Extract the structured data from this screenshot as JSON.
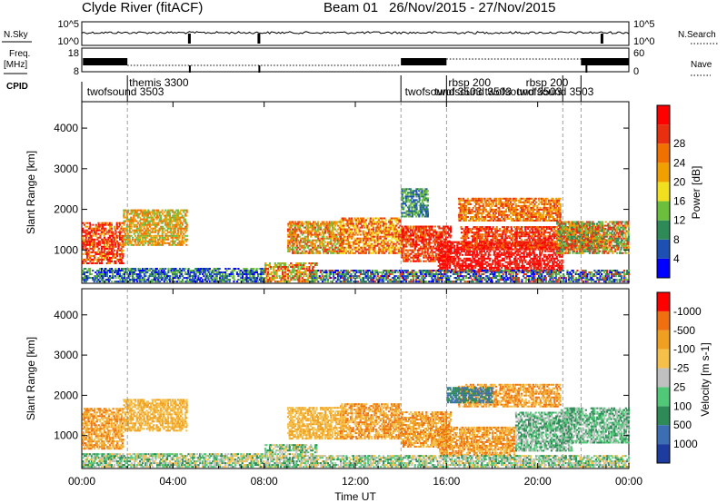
{
  "header": {
    "station": "Clyde River (fitACF)",
    "beam": "Beam 01",
    "dates": "26/Nov/2015 - 27/Nov/2015"
  },
  "strips": {
    "nsky_label": "N.Sky",
    "nsky_ticks": [
      "10^5",
      "10^0"
    ],
    "nsearch_label": "N.Search",
    "nsearch_ticks": [
      "10^5",
      "10^0"
    ],
    "freq_label": "Freq.",
    "freq_unit": "[MHz]",
    "freq_ticks": [
      "18",
      "8"
    ],
    "nave_label": "Nave",
    "nave_ticks": [
      "60",
      "0"
    ],
    "cpid_label": "CPID",
    "cpid_labels": [
      {
        "text": "themis 3300",
        "hour": 2.0,
        "row": 0
      },
      {
        "text": "twofsound 3503",
        "hour": 0.15,
        "row": 1
      },
      {
        "text": "rbsp 200",
        "hour": 16.0,
        "row": 0
      },
      {
        "text": "rbsp 200",
        "hour": 19.4,
        "row": 0
      },
      {
        "text": "twofsound 3503",
        "hour": 14.1,
        "row": 1
      },
      {
        "text": "twofsound 3503",
        "hour": 15.4,
        "row": 1
      },
      {
        "text": "twofsound 3503",
        "hour": 17.6,
        "row": 1
      },
      {
        "text": "twofsound 3503",
        "hour": 19.0,
        "row": 1
      }
    ],
    "cpid_change_hours": [
      2.0,
      14.0,
      16.0,
      21.1,
      21.9
    ]
  },
  "chart_data": [
    {
      "type": "heatmap",
      "name": "Power",
      "ylabel": "Slant Range [km]",
      "xlim_hours": [
        0,
        24
      ],
      "ylim_km": [
        180,
        4650
      ],
      "yticks": [
        1000,
        2000,
        3000,
        4000
      ],
      "colorbar": {
        "title": "Power [dB]",
        "ticks": [
          "4",
          "8",
          "12",
          "16",
          "20",
          "24",
          "28"
        ],
        "colors": [
          "#0000ff",
          "#1e50b4",
          "#2e8b57",
          "#6cbf3c",
          "#f0e020",
          "#f0a000",
          "#f07000",
          "#e83010",
          "#ff0000"
        ]
      },
      "regions": [
        {
          "h0": 0.0,
          "h1": 1.8,
          "r0": 650,
          "r1": 1700,
          "c": [
            5,
            7,
            8
          ]
        },
        {
          "h0": 1.8,
          "h1": 4.6,
          "r0": 1100,
          "r1": 2000,
          "c": [
            3,
            5,
            6
          ]
        },
        {
          "h0": 0.0,
          "h1": 8.0,
          "r0": 200,
          "r1": 560,
          "c": [
            0,
            1,
            2,
            3
          ]
        },
        {
          "h0": 8.0,
          "h1": 10.3,
          "r0": 200,
          "r1": 700,
          "c": [
            3,
            5,
            7
          ]
        },
        {
          "h0": 9.0,
          "h1": 11.5,
          "r0": 900,
          "r1": 1700,
          "c": [
            3,
            5,
            6,
            7
          ]
        },
        {
          "h0": 11.3,
          "h1": 14.0,
          "r0": 900,
          "r1": 1800,
          "c": [
            4,
            6,
            7
          ]
        },
        {
          "h0": 14.0,
          "h1": 16.2,
          "r0": 700,
          "r1": 1600,
          "c": [
            6,
            7,
            8
          ]
        },
        {
          "h0": 15.6,
          "h1": 21.1,
          "r0": 450,
          "r1": 1200,
          "c": [
            8,
            7,
            8
          ]
        },
        {
          "h0": 16.6,
          "h1": 23.0,
          "r0": 1000,
          "r1": 1600,
          "c": [
            6,
            7,
            8
          ]
        },
        {
          "h0": 16.5,
          "h1": 21.0,
          "r0": 1700,
          "r1": 2300,
          "c": [
            5,
            6,
            7
          ]
        },
        {
          "h0": 20.8,
          "h1": 24.0,
          "r0": 900,
          "r1": 1700,
          "c": [
            2,
            3,
            5,
            7
          ]
        },
        {
          "h0": 14.0,
          "h1": 15.2,
          "r0": 1800,
          "r1": 2500,
          "c": [
            1,
            2,
            3
          ]
        },
        {
          "h0": 10.0,
          "h1": 24.0,
          "r0": 200,
          "r1": 520,
          "c": [
            0,
            1,
            2,
            3,
            7
          ]
        }
      ]
    },
    {
      "type": "heatmap",
      "name": "Velocity",
      "ylabel": "Slant Range [km]",
      "xlabel": "Time UT",
      "xlim_hours": [
        0,
        24
      ],
      "ylim_km": [
        180,
        4650
      ],
      "yticks": [
        1000,
        2000,
        3000,
        4000
      ],
      "xticks": [
        "00:00",
        "04:00",
        "08:00",
        "12:00",
        "16:00",
        "20:00",
        "00:00"
      ],
      "colorbar": {
        "title": "Velocity [m s-1]",
        "ticks": [
          "1000",
          "500",
          "100",
          "25",
          "-25",
          "-100",
          "-500",
          "-1000"
        ],
        "colors": [
          "#1e3ca0",
          "#3c6eb4",
          "#2e8b57",
          "#50c878",
          "#c0c0c0",
          "#f5c04a",
          "#f0a020",
          "#f07010",
          "#ff0000"
        ]
      },
      "regions": [
        {
          "h0": 0.0,
          "h1": 1.8,
          "r0": 650,
          "r1": 1700,
          "c": [
            5,
            6,
            7
          ]
        },
        {
          "h0": 1.8,
          "h1": 4.6,
          "r0": 1100,
          "r1": 1900,
          "c": [
            5,
            6
          ]
        },
        {
          "h0": 0.0,
          "h1": 8.0,
          "r0": 200,
          "r1": 560,
          "c": [
            2,
            3,
            4,
            5
          ]
        },
        {
          "h0": 8.0,
          "h1": 10.3,
          "r0": 200,
          "r1": 800,
          "c": [
            2,
            3,
            4,
            5
          ]
        },
        {
          "h0": 9.0,
          "h1": 11.5,
          "r0": 900,
          "r1": 1700,
          "c": [
            5,
            6
          ]
        },
        {
          "h0": 11.3,
          "h1": 14.0,
          "r0": 900,
          "r1": 1800,
          "c": [
            5,
            6,
            7
          ]
        },
        {
          "h0": 14.0,
          "h1": 16.2,
          "r0": 700,
          "r1": 1600,
          "c": [
            5,
            6,
            7
          ]
        },
        {
          "h0": 15.6,
          "h1": 19.0,
          "r0": 500,
          "r1": 1200,
          "c": [
            6,
            7,
            5
          ]
        },
        {
          "h0": 19.0,
          "h1": 21.5,
          "r0": 600,
          "r1": 1600,
          "c": [
            4,
            3,
            2
          ]
        },
        {
          "h0": 21.0,
          "h1": 24.0,
          "r0": 800,
          "r1": 1700,
          "c": [
            2,
            3,
            4
          ]
        },
        {
          "h0": 16.5,
          "h1": 21.0,
          "r0": 1700,
          "r1": 2300,
          "c": [
            5,
            6,
            7
          ]
        },
        {
          "h0": 16.0,
          "h1": 18.0,
          "r0": 1800,
          "r1": 2200,
          "c": [
            1,
            2
          ]
        },
        {
          "h0": 10.0,
          "h1": 24.0,
          "r0": 200,
          "r1": 520,
          "c": [
            3,
            4,
            5,
            2
          ]
        }
      ]
    }
  ]
}
